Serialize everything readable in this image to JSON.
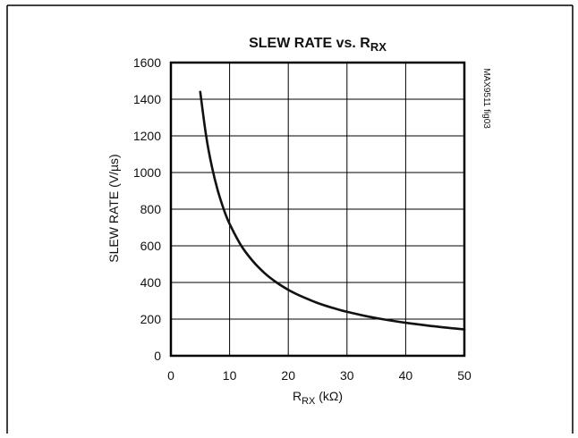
{
  "chart_data": {
    "type": "line",
    "title": "SLEW RATE vs. R",
    "title_subscript": "RX",
    "xlabel": "R",
    "xlabel_subscript": "RX",
    "xlabel_unit": " (kΩ)",
    "ylabel": "SLEW RATE (V/µs)",
    "xlim": [
      0,
      50
    ],
    "ylim": [
      0,
      1600
    ],
    "xticks": [
      "0",
      "10",
      "20",
      "30",
      "40",
      "50"
    ],
    "yticks": [
      "0",
      "200",
      "400",
      "600",
      "800",
      "1000",
      "1200",
      "1400",
      "1600"
    ],
    "grid": true,
    "side_label": "MAX9511 fig03",
    "series": [
      {
        "x": [
          5,
          6,
          7,
          8,
          9,
          10,
          12,
          14,
          16,
          18,
          20,
          22,
          25,
          28,
          30,
          33,
          36,
          40,
          44,
          47,
          50
        ],
        "y": [
          1440,
          1200,
          1030,
          900,
          800,
          720,
          600,
          515,
          450,
          400,
          360,
          328,
          288,
          257,
          240,
          218,
          200,
          180,
          164,
          153,
          144
        ]
      }
    ]
  }
}
